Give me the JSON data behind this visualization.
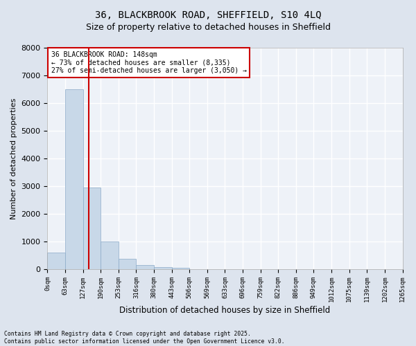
{
  "title_line1": "36, BLACKBROOK ROAD, SHEFFIELD, S10 4LQ",
  "title_line2": "Size of property relative to detached houses in Sheffield",
  "xlabel": "Distribution of detached houses by size in Sheffield",
  "ylabel": "Number of detached properties",
  "bar_color": "#c8d8e8",
  "bar_edge_color": "#8aaac8",
  "background_color": "#eef2f8",
  "grid_color": "#ffffff",
  "vline_color": "#cc0000",
  "bin_edges": [
    0,
    63,
    127,
    190,
    253,
    316,
    380,
    443,
    506,
    569,
    633,
    696,
    759,
    822,
    886,
    949,
    1012,
    1075,
    1139,
    1202,
    1265
  ],
  "bin_labels": [
    "0sqm",
    "63sqm",
    "127sqm",
    "190sqm",
    "253sqm",
    "316sqm",
    "380sqm",
    "443sqm",
    "506sqm",
    "569sqm",
    "633sqm",
    "696sqm",
    "759sqm",
    "822sqm",
    "886sqm",
    "949sqm",
    "1012sqm",
    "1075sqm",
    "1139sqm",
    "1202sqm",
    "1265sqm"
  ],
  "bar_heights": [
    600,
    6500,
    2950,
    1000,
    380,
    160,
    80,
    50,
    0,
    0,
    0,
    0,
    0,
    0,
    0,
    0,
    0,
    0,
    0,
    0
  ],
  "ylim": [
    0,
    8000
  ],
  "yticks": [
    0,
    1000,
    2000,
    3000,
    4000,
    5000,
    6000,
    7000,
    8000
  ],
  "property_sqm": 148,
  "bin_width": 63,
  "annotation_title": "36 BLACKBROOK ROAD: 148sqm",
  "annotation_line2": "← 73% of detached houses are smaller (8,335)",
  "annotation_line3": "27% of semi-detached houses are larger (3,050) →",
  "footnote1": "Contains HM Land Registry data © Crown copyright and database right 2025.",
  "footnote2": "Contains public sector information licensed under the Open Government Licence v3.0."
}
